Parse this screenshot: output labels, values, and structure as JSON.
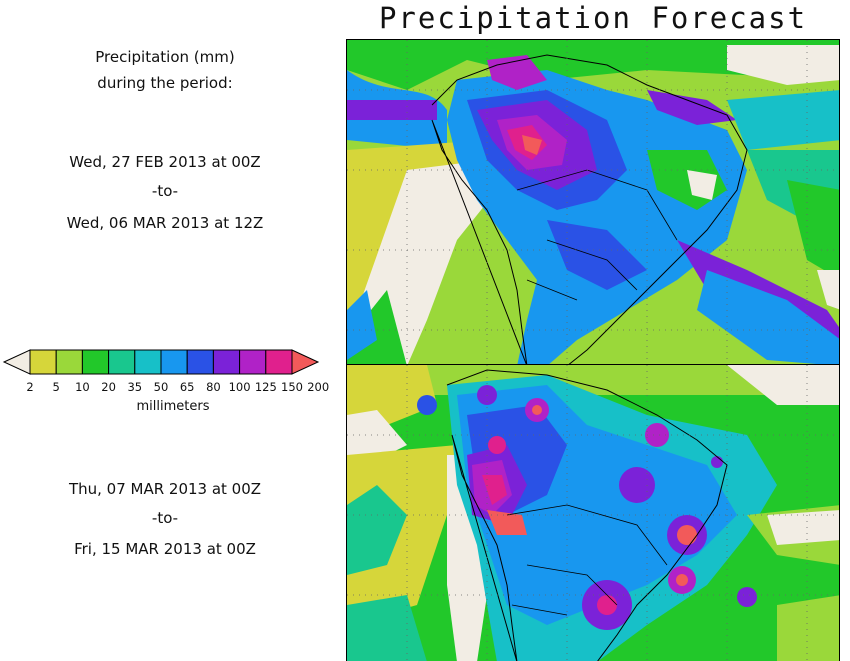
{
  "title": "Precipitation Forecast",
  "legend_heading": [
    "Precipitation (mm)",
    "during the period:"
  ],
  "period1": {
    "start": "Wed, 27 FEB 2013 at 00Z",
    "sep": "-to-",
    "end": "Wed, 06 MAR 2013 at 12Z"
  },
  "period2": {
    "start": "Thu, 07 MAR 2013 at 00Z",
    "sep": "-to-",
    "end": "Fri, 15 MAR 2013 at 00Z"
  },
  "colorbar": {
    "labels": [
      "2",
      "5",
      "10",
      "20",
      "35",
      "50",
      "65",
      "80",
      "100",
      "125",
      "150",
      "200"
    ],
    "colors": [
      "#f2ede4",
      "#d6d63a",
      "#9ad83a",
      "#22c82a",
      "#19c78e",
      "#17c0c8",
      "#1897ef",
      "#2a52e6",
      "#7b22d8",
      "#b022c7",
      "#e0208d",
      "#f25a5a"
    ],
    "units": "millimeters"
  }
}
